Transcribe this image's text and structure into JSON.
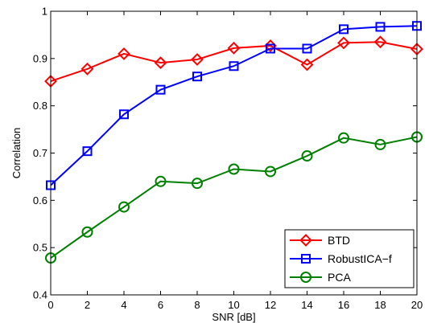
{
  "chart_data": {
    "type": "line",
    "xlabel": "SNR [dB]",
    "ylabel": "Correlation",
    "xlim": [
      0,
      20
    ],
    "ylim": [
      0.4,
      1
    ],
    "x_ticks": [
      "0",
      "2",
      "4",
      "6",
      "8",
      "10",
      "12",
      "14",
      "16",
      "18",
      "20"
    ],
    "y_ticks": [
      "0.4",
      "0.5",
      "0.6",
      "0.7",
      "0.8",
      "0.9",
      "1"
    ],
    "grid": false,
    "legend_position": "bottom-right",
    "x": [
      0,
      2,
      4,
      6,
      8,
      10,
      12,
      14,
      16,
      18,
      20
    ],
    "series": [
      {
        "name": "BTD",
        "color": "#ff0000",
        "marker": "diamond",
        "values": [
          0.852,
          0.878,
          0.91,
          0.891,
          0.898,
          0.922,
          0.927,
          0.887,
          0.933,
          0.935,
          0.92
        ]
      },
      {
        "name": "RobustICA−f",
        "color": "#0000ff",
        "marker": "square",
        "values": [
          0.632,
          0.704,
          0.782,
          0.834,
          0.862,
          0.884,
          0.921,
          0.921,
          0.962,
          0.967,
          0.969
        ]
      },
      {
        "name": "PCA",
        "color": "#008000",
        "marker": "circle",
        "values": [
          0.478,
          0.533,
          0.586,
          0.64,
          0.636,
          0.666,
          0.661,
          0.694,
          0.732,
          0.718,
          0.734
        ]
      }
    ]
  }
}
